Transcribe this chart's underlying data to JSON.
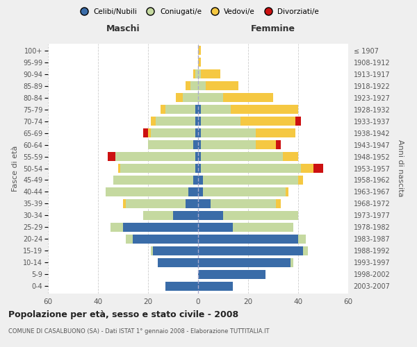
{
  "age_groups": [
    "100+",
    "95-99",
    "90-94",
    "85-89",
    "80-84",
    "75-79",
    "70-74",
    "65-69",
    "60-64",
    "55-59",
    "50-54",
    "45-49",
    "40-44",
    "35-39",
    "30-34",
    "25-29",
    "20-24",
    "15-19",
    "10-14",
    "5-9",
    "0-4"
  ],
  "birth_years": [
    "≤ 1907",
    "1908-1912",
    "1913-1917",
    "1918-1922",
    "1923-1927",
    "1928-1932",
    "1933-1937",
    "1938-1942",
    "1943-1947",
    "1948-1952",
    "1953-1957",
    "1958-1962",
    "1963-1967",
    "1968-1972",
    "1973-1977",
    "1978-1982",
    "1983-1987",
    "1988-1992",
    "1993-1997",
    "1998-2002",
    "2003-2007"
  ],
  "male_celibi": [
    0,
    0,
    0,
    0,
    0,
    1,
    1,
    1,
    2,
    1,
    1,
    2,
    4,
    5,
    10,
    30,
    26,
    18,
    16,
    0,
    13
  ],
  "male_coniugati": [
    0,
    0,
    1,
    3,
    6,
    12,
    16,
    18,
    18,
    32,
    30,
    32,
    33,
    24,
    12,
    5,
    3,
    1,
    0,
    0,
    0
  ],
  "male_vedovi": [
    0,
    0,
    1,
    2,
    3,
    2,
    2,
    1,
    0,
    0,
    1,
    0,
    0,
    1,
    0,
    0,
    0,
    0,
    0,
    0,
    0
  ],
  "male_divorziati": [
    0,
    0,
    0,
    0,
    0,
    0,
    0,
    2,
    0,
    3,
    0,
    0,
    0,
    0,
    0,
    0,
    0,
    0,
    0,
    0,
    0
  ],
  "female_celibi": [
    0,
    0,
    0,
    0,
    0,
    1,
    1,
    1,
    1,
    1,
    1,
    2,
    2,
    5,
    10,
    14,
    40,
    42,
    37,
    27,
    14
  ],
  "female_coniugati": [
    0,
    0,
    1,
    3,
    10,
    12,
    16,
    22,
    22,
    33,
    40,
    38,
    33,
    26,
    30,
    24,
    3,
    2,
    1,
    0,
    0
  ],
  "female_vedovi": [
    1,
    1,
    8,
    13,
    20,
    27,
    22,
    16,
    8,
    6,
    5,
    2,
    1,
    2,
    0,
    0,
    0,
    0,
    0,
    0,
    0
  ],
  "female_divorziati": [
    0,
    0,
    0,
    0,
    0,
    0,
    2,
    0,
    2,
    0,
    4,
    0,
    0,
    0,
    0,
    0,
    0,
    0,
    0,
    0,
    0
  ],
  "color_celibi": "#3a6ca8",
  "color_coniugati": "#c5d9a0",
  "color_vedovi": "#f5c842",
  "color_divorziati": "#cc1111",
  "title": "Popolazione per età, sesso e stato civile - 2008",
  "subtitle": "COMUNE DI CASALBUONO (SA) - Dati ISTAT 1° gennaio 2008 - Elaborazione TUTTITALIA.IT",
  "xlabel_left": "Maschi",
  "xlabel_right": "Femmine",
  "ylabel_left": "Fasce di età",
  "ylabel_right": "Anni di nascita",
  "xlim": 60,
  "bg_color": "#efefef",
  "plot_bg_color": "#ffffff",
  "legend_labels": [
    "Celibi/Nubili",
    "Coniugati/e",
    "Vedovi/e",
    "Divorziati/e"
  ]
}
